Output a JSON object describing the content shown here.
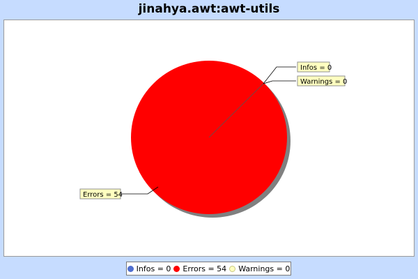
{
  "chart_data": {
    "type": "pie",
    "title": "jinahya.awt:awt-utils",
    "legend_position": "bottom",
    "slices": [
      {
        "name": "Infos",
        "value": 0,
        "label": "Infos = 0",
        "color": "#4f6fd0"
      },
      {
        "name": "Errors",
        "value": 54,
        "label": "Errors = 54",
        "color": "#ff0000"
      },
      {
        "name": "Warnings",
        "value": 0,
        "label": "Warnings = 0",
        "color": "#ffffc0"
      }
    ]
  }
}
